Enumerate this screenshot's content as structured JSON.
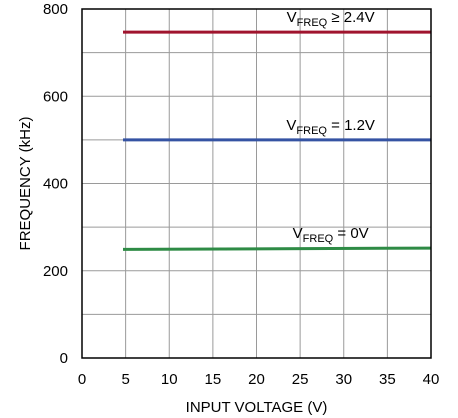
{
  "chart_data": {
    "type": "line",
    "xlabel": "INPUT VOLTAGE (V)",
    "ylabel": "FREQUENCY (kHz)",
    "xlim": [
      0,
      40
    ],
    "ylim": [
      0,
      800
    ],
    "xticks": [
      "0",
      "5",
      "10",
      "15",
      "20",
      "25",
      "30",
      "35",
      "40"
    ],
    "yticks": [
      "0",
      "200",
      "400",
      "600",
      "800"
    ],
    "grid": true,
    "series": [
      {
        "label_main": "V",
        "label_sub": "FREQ",
        "label_rest": " ≥ 2.4V",
        "color": "#a0142e",
        "x": [
          4.7,
          40
        ],
        "y": [
          747,
          747
        ]
      },
      {
        "label_main": "V",
        "label_sub": "FREQ",
        "label_rest": " = 1.2V",
        "color": "#3553a3",
        "x": [
          4.7,
          40
        ],
        "y": [
          500,
          500
        ]
      },
      {
        "label_main": "V",
        "label_sub": "FREQ",
        "label_rest": " = 0V",
        "color": "#2e8b45",
        "x": [
          4.7,
          40
        ],
        "y": [
          249,
          252
        ]
      }
    ]
  }
}
